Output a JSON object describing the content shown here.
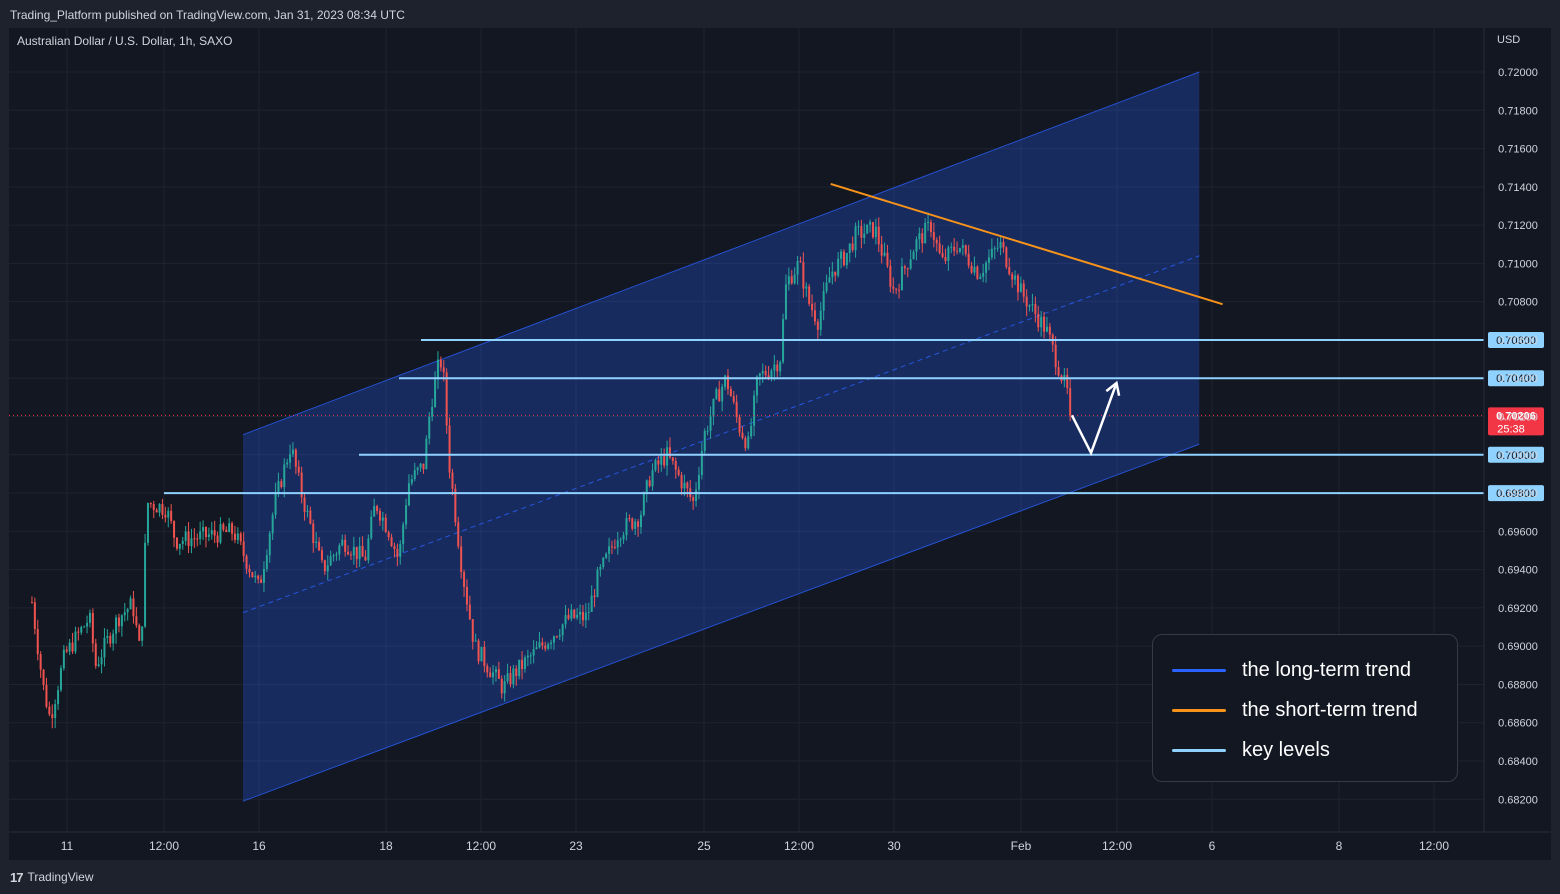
{
  "header": {
    "published": "Trading_Platform published on TradingView.com, Jan 31, 2023 08:34 UTC",
    "symbol": "Australian Dollar / U.S. Dollar, 1h, SAXO"
  },
  "footer": {
    "logo_mark": "17",
    "logo_text": "TradingView"
  },
  "colors": {
    "background": "#131722",
    "up": "#26a69a",
    "down": "#ef5350",
    "channel": "#2962ff",
    "short_trend": "#f7931a",
    "key_level": "#8fd2ff",
    "last_price": "#f23645"
  },
  "chart_data": {
    "type": "candlestick",
    "symbol": "Australian Dollar / U.S. Dollar",
    "interval": "1h",
    "exchange": "SAXO",
    "currency": "USD",
    "y_ticks": [
      "0.68200",
      "0.68400",
      "0.68600",
      "0.68800",
      "0.69000",
      "0.69200",
      "0.69400",
      "0.69600",
      "0.69800",
      "0.70000",
      "0.70200",
      "0.70400",
      "0.70600",
      "0.70800",
      "0.71000",
      "0.71200",
      "0.71400",
      "0.71600",
      "0.71800",
      "0.72000"
    ],
    "ylim": [
      0.6805,
      0.7223
    ],
    "x_ticks": [
      "11",
      "12:00",
      "16",
      "18",
      "12:00",
      "23",
      "25",
      "12:00",
      "30",
      "Feb",
      "12:00",
      "6",
      "8",
      "12:00"
    ],
    "price_path": [
      [
        "Jan 9 19:00",
        0.6923
      ],
      [
        "Jan 10 04:00",
        0.688
      ],
      [
        "Jan 10 10:00",
        0.6862
      ],
      [
        "Jan 10 22:00",
        0.6895
      ],
      [
        "Jan 11 14:00",
        0.6915
      ],
      [
        "Jan 11 18:00",
        0.689
      ],
      [
        "Jan 12 08:00",
        0.6915
      ],
      [
        "Jan 12 17:00",
        0.6922
      ],
      [
        "Jan 12 22:00",
        0.6895
      ],
      [
        "Jan 13 02:00",
        0.6975
      ],
      [
        "Jan 13 14:00",
        0.6972
      ],
      [
        "Jan 13 20:00",
        0.6955
      ],
      [
        "Jan 15 08:00",
        0.696
      ],
      [
        "Jan 16 00:00",
        0.693
      ],
      [
        "Jan 16 06:00",
        0.6975
      ],
      [
        "Jan 16 12:00",
        0.7005
      ],
      [
        "Jan 16 16:00",
        0.698
      ],
      [
        "Jan 17 00:00",
        0.694
      ],
      [
        "Jan 17 08:00",
        0.6955
      ],
      [
        "Jan 17 16:00",
        0.6945
      ],
      [
        "Jan 17 20:00",
        0.6975
      ],
      [
        "Jan 18 02:00",
        0.696
      ],
      [
        "Jan 18 08:00",
        0.6945
      ],
      [
        "Jan 18 14:00",
        0.6985
      ],
      [
        "Jan 19 00:00",
        0.6995
      ],
      [
        "Jan 19 04:00",
        0.7025
      ],
      [
        "Jan 19 10:00",
        0.705
      ],
      [
        "Jan 19 12:00",
        0.7045
      ],
      [
        "Jan 19 16:00",
        0.6995
      ],
      [
        "Jan 20 00:00",
        0.694
      ],
      [
        "Jan 20 08:00",
        0.69
      ],
      [
        "Jan 20 16:00",
        0.689
      ],
      [
        "Jan 21 02:00",
        0.6878
      ],
      [
        "Jan 21 08:00",
        0.6885
      ],
      [
        "Jan 22 20:00",
        0.6915
      ],
      [
        "Jan 23 04:00",
        0.6915
      ],
      [
        "Jan 23 08:00",
        0.6935
      ],
      [
        "Jan 23 16:00",
        0.696
      ],
      [
        "Jan 24 00:00",
        0.6968
      ],
      [
        "Jan 24 04:00",
        0.699
      ],
      [
        "Jan 24 10:00",
        0.7
      ],
      [
        "Jan 24 16:00",
        0.6985
      ],
      [
        "Jan 24 20:00",
        0.6975
      ],
      [
        "Jan 25 00:00",
        0.701
      ],
      [
        "Jan 25 08:00",
        0.703
      ],
      [
        "Jan 25 14:00",
        0.704
      ],
      [
        "Jan 25 22:00",
        0.7015
      ],
      [
        "Jan 26 04:00",
        0.7005
      ],
      [
        "Jan 26 10:00",
        0.704
      ],
      [
        "Jan 26 18:00",
        0.7045
      ],
      [
        "Jan 27 00:00",
        0.705
      ],
      [
        "Jan 27 04:00",
        0.709
      ],
      [
        "Jan 27 12:00",
        0.71
      ],
      [
        "Jan 27 18:00",
        0.708
      ],
      [
        "Jan 28 00:00",
        0.707
      ],
      [
        "Jan 28 08:00",
        0.7095
      ],
      [
        "Jan 28 18:00",
        0.7105
      ],
      [
        "Jan 29 00:00",
        0.7115
      ],
      [
        "Jan 29 12:00",
        0.7118
      ],
      [
        "Jan 30 00:00",
        0.7085
      ],
      [
        "Jan 30 08:00",
        0.711
      ],
      [
        "Jan 30 14:00",
        0.712
      ],
      [
        "Jan 30 18:00",
        0.71
      ],
      [
        "Jan 31 00:00",
        0.711
      ],
      [
        "Jan 31 08:00",
        0.7095
      ],
      [
        "Jan 31 16:00",
        0.711
      ],
      [
        "Feb 1 00:00",
        0.7085
      ],
      [
        "Feb 1 08:00",
        0.7075
      ],
      [
        "Feb 1 16:00",
        0.7065
      ],
      [
        "Feb 1 22:00",
        0.705
      ],
      [
        "Feb 2 02:00",
        0.704
      ],
      [
        "Feb 2 06:00",
        0.703
      ],
      [
        "Feb 2 08:00",
        0.70206
      ]
    ],
    "last_price": "0.70206",
    "countdown": "25:38",
    "key_levels": [
      0.706,
      0.704,
      0.7,
      0.698
    ],
    "key_level_labels": [
      "0.70600",
      "0.70400",
      "0.70000",
      "0.69800"
    ],
    "long_term_channel": {
      "start_date": "Jan 15 14:00",
      "end_date": "Feb 5 16:00",
      "upper": [
        0.70105,
        0.72
      ],
      "middle": [
        0.69175,
        0.7104
      ],
      "lower": [
        0.6819,
        0.70055
      ]
    },
    "short_term_trendline": {
      "from": [
        "Jan 28 08:00",
        0.71415
      ],
      "to": [
        "Feb 6 04:00",
        0.70787
      ]
    },
    "projection": [
      [
        "Feb 2 08:00",
        0.70206
      ],
      [
        "Feb 2 20:00",
        0.7001
      ],
      [
        "Feb 3 12:00",
        0.70375
      ]
    ],
    "legend": [
      {
        "label": "the long-term trend",
        "color": "#2962ff"
      },
      {
        "label": "the short-term trend",
        "color": "#f7931a"
      },
      {
        "label": "key levels",
        "color": "#8fd2ff"
      }
    ]
  }
}
